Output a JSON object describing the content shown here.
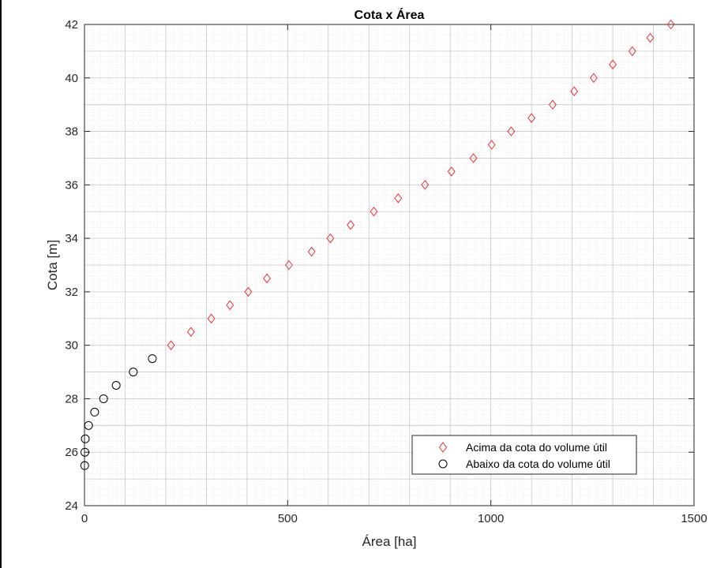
{
  "chart_data": {
    "type": "scatter",
    "title": "Cota x Área",
    "xlabel": "Área [ha]",
    "ylabel": "Cota [m]",
    "xlim": [
      0,
      1500
    ],
    "ylim": [
      24,
      42
    ],
    "xticks": [
      0,
      500,
      1000,
      1500
    ],
    "yticks": [
      24,
      26,
      28,
      30,
      32,
      34,
      36,
      38,
      40,
      42
    ],
    "grid": true,
    "minor_grid": true,
    "legend_position": "bottom-right",
    "series": [
      {
        "name": "Acima da cota do volume útil",
        "marker": "diamond",
        "color": "#e8303a",
        "x": [
          213,
          262,
          312,
          358,
          403,
          449,
          503,
          559,
          605,
          655,
          712,
          772,
          838,
          903,
          957,
          1002,
          1050,
          1100,
          1152,
          1205,
          1253,
          1300,
          1348,
          1392,
          1443
        ],
        "y": [
          30,
          30.5,
          31,
          31.5,
          32,
          32.5,
          33,
          33.5,
          34,
          34.5,
          35,
          35.5,
          36,
          36.5,
          37,
          37.5,
          38,
          38.5,
          39,
          39.5,
          40,
          40.5,
          41,
          41.5,
          42
        ]
      },
      {
        "name": "Abaixo da cota do volume útil",
        "marker": "circle",
        "color": "#000000",
        "x": [
          0.5,
          1,
          2,
          10,
          25,
          47,
          78,
          120,
          167
        ],
        "y": [
          25.5,
          26,
          26.5,
          27,
          27.5,
          28,
          28.5,
          29,
          29.5
        ]
      }
    ]
  }
}
